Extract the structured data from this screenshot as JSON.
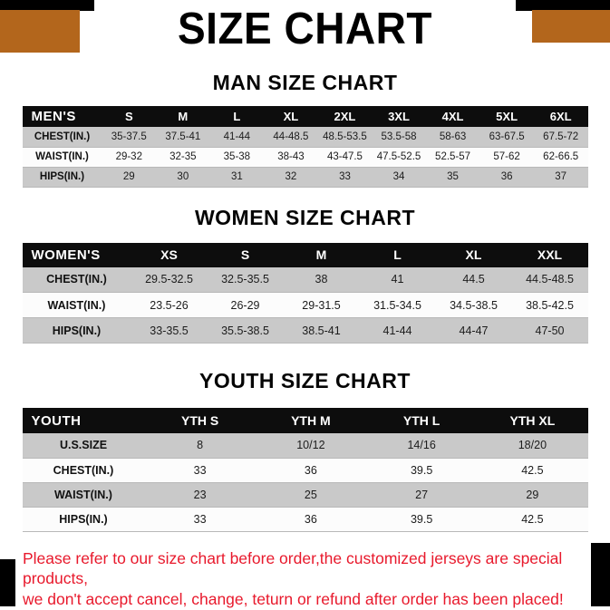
{
  "banner": {
    "title": "SIZE CHART"
  },
  "sections": [
    {
      "heading": "MAN SIZE CHART",
      "table": {
        "type": "table",
        "header": [
          "MEN'S",
          "S",
          "M",
          "L",
          "XL",
          "2XL",
          "3XL",
          "4XL",
          "5XL",
          "6XL"
        ],
        "rows": [
          [
            "CHEST(IN.)",
            "35-37.5",
            "37.5-41",
            "41-44",
            "44-48.5",
            "48.5-53.5",
            "53.5-58",
            "58-63",
            "63-67.5",
            "67.5-72"
          ],
          [
            "WAIST(IN.)",
            "29-32",
            "32-35",
            "35-38",
            "38-43",
            "43-47.5",
            "47.5-52.5",
            "52.5-57",
            "57-62",
            "62-66.5"
          ],
          [
            "HIPS(IN.)",
            "29",
            "30",
            "31",
            "32",
            "33",
            "34",
            "35",
            "36",
            "37"
          ]
        ]
      }
    },
    {
      "heading": "WOMEN SIZE CHART",
      "table": {
        "type": "table",
        "header": [
          "WOMEN'S",
          "XS",
          "S",
          "M",
          "L",
          "XL",
          "XXL"
        ],
        "rows": [
          [
            "CHEST(IN.)",
            "29.5-32.5",
            "32.5-35.5",
            "38",
            "41",
            "44.5",
            "44.5-48.5"
          ],
          [
            "WAIST(IN.)",
            "23.5-26",
            "26-29",
            "29-31.5",
            "31.5-34.5",
            "34.5-38.5",
            "38.5-42.5"
          ],
          [
            "HIPS(IN.)",
            "33-35.5",
            "35.5-38.5",
            "38.5-41",
            "41-44",
            "44-47",
            "47-50"
          ]
        ]
      }
    },
    {
      "heading": "YOUTH SIZE CHART",
      "table": {
        "type": "table",
        "header": [
          "YOUTH",
          "YTH S",
          "YTH M",
          "YTH L",
          "YTH XL"
        ],
        "rows": [
          [
            "U.S.SIZE",
            "8",
            "10/12",
            "14/16",
            "18/20"
          ],
          [
            "CHEST(IN.)",
            "33",
            "36",
            "39.5",
            "42.5"
          ],
          [
            "WAIST(IN.)",
            "23",
            "25",
            "27",
            "29"
          ],
          [
            "HIPS(IN.)",
            "33",
            "36",
            "39.5",
            "42.5"
          ]
        ]
      }
    }
  ],
  "disclaimer": {
    "lines": [
      "Please refer to our size chart before order,the customized jerseys are special products,",
      "we don't accept cancel, change, teturn or refund after order has been placed!"
    ]
  },
  "colors": {
    "accent_orange": "#b3661c",
    "header_bg": "#0d0d0d",
    "row_shade": "#c9c9c9",
    "row_light": "#fcfcfc",
    "disclaimer_red": "#e8192c",
    "title_color": "#000000"
  }
}
